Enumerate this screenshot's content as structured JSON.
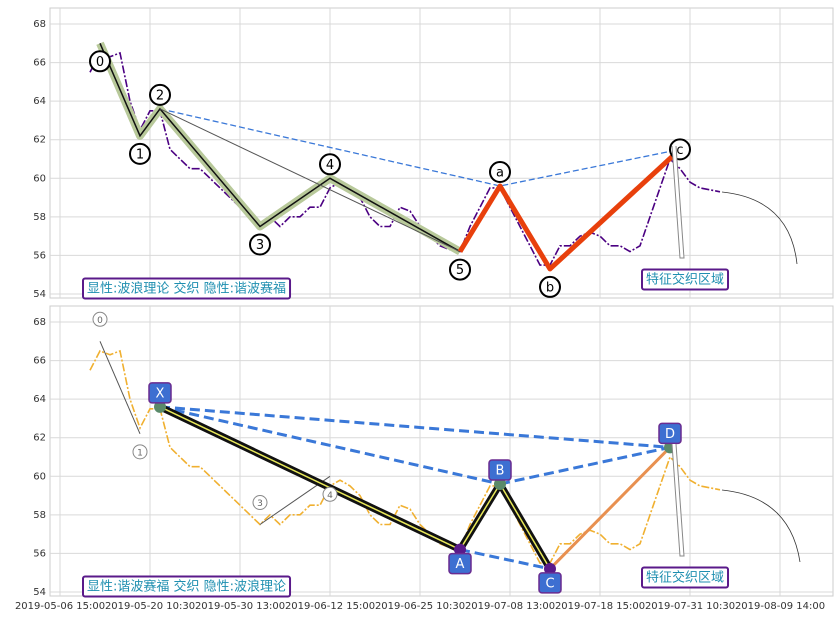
{
  "chart_data": [
    {
      "type": "line",
      "color": "#4b0082",
      "ylim": [
        54,
        68
      ],
      "yticks": [
        54,
        56,
        58,
        60,
        62,
        64,
        66,
        68
      ],
      "grid": true,
      "values": [
        null,
        null,
        null,
        65.5,
        66.5,
        66.3,
        66.5,
        64,
        62.5,
        63.5,
        63.5,
        61.5,
        61,
        60.5,
        60.5,
        60,
        59.5,
        59,
        58.5,
        58,
        57.5,
        58,
        57.5,
        58,
        58,
        58.5,
        58.5,
        59.5,
        59.8,
        59.5,
        59,
        58,
        57.5,
        57.5,
        58.5,
        58.3,
        57.5,
        57,
        56.5,
        56.3,
        56.2,
        57.5,
        58.5,
        59.5,
        59.5,
        58.5,
        57.5,
        56.5,
        55.5,
        55.5,
        56.5,
        56.5,
        57,
        57.2,
        57,
        56.5,
        56.5,
        56.2,
        56.5,
        58,
        59.5,
        61,
        60.5,
        59.8,
        59.5,
        59.4,
        59.3,
        null,
        null,
        null,
        null,
        null,
        null
      ],
      "waves": [
        {
          "label": "0",
          "index": 4,
          "value": 67
        },
        {
          "label": "1",
          "index": 8,
          "value": 62.2
        },
        {
          "label": "2",
          "index": 10,
          "value": 63.6
        },
        {
          "label": "3",
          "index": 20,
          "value": 57.5
        },
        {
          "label": "4",
          "index": 27,
          "value": 60
        },
        {
          "label": "5",
          "index": 40,
          "value": 56.2
        },
        {
          "label": "a",
          "index": 44,
          "value": 59.6
        },
        {
          "label": "b",
          "index": 49,
          "value": 55.3
        },
        {
          "label": "c",
          "index": 62,
          "value": 61.5
        }
      ],
      "annotation": "显性:波浪理论 交织 隐性:谐波赛福",
      "zone_label": "特征交织区域"
    },
    {
      "type": "line",
      "color": "#f0b030",
      "ylim": [
        54,
        68
      ],
      "yticks": [
        54,
        56,
        58,
        60,
        62,
        64,
        66,
        68
      ],
      "grid": true,
      "categories": [
        "2019-05-06 15:00",
        null,
        null,
        null,
        null,
        null,
        null,
        null,
        null,
        "2019-05-20 10:30",
        null,
        null,
        null,
        null,
        null,
        null,
        null,
        null,
        "2019-05-30 13:00",
        null,
        null,
        null,
        null,
        null,
        null,
        null,
        null,
        "2019-06-12 15:00",
        null,
        null,
        null,
        null,
        null,
        null,
        null,
        null,
        "2019-06-25 10:30",
        null,
        null,
        null,
        null,
        null,
        null,
        null,
        null,
        "2019-07-08 13:00",
        null,
        null,
        null,
        null,
        null,
        null,
        null,
        null,
        "2019-07-18 15:00",
        null,
        null,
        null,
        null,
        null,
        null,
        null,
        null,
        "2019-07-31 10:30",
        null,
        null,
        null,
        null,
        null,
        null,
        null,
        null,
        "2019-08-09 14:00"
      ],
      "values": [
        null,
        null,
        null,
        65.5,
        66.5,
        66.3,
        66.5,
        64,
        62.5,
        63.5,
        63.5,
        61.5,
        61,
        60.5,
        60.5,
        60,
        59.5,
        59,
        58.5,
        58,
        57.5,
        58,
        57.5,
        58,
        58,
        58.5,
        58.5,
        59.5,
        59.8,
        59.5,
        59,
        58,
        57.5,
        57.5,
        58.5,
        58.3,
        57.5,
        57,
        56.5,
        56.3,
        56.2,
        57.5,
        58.5,
        59.5,
        59.5,
        58.5,
        57.5,
        56.5,
        55.5,
        55.5,
        56.5,
        56.5,
        57,
        57.2,
        57,
        56.5,
        56.5,
        56.2,
        56.5,
        58,
        59.5,
        61,
        60.5,
        59.8,
        59.5,
        59.4,
        59.3,
        null,
        null,
        null,
        null,
        null,
        null
      ],
      "waves": [
        {
          "label": "0",
          "index": 4,
          "value": 67
        },
        {
          "label": "1",
          "index": 8,
          "value": 62.2
        },
        {
          "label": "3",
          "index": 20,
          "value": 57.5
        },
        {
          "label": "4",
          "index": 27,
          "value": 60
        }
      ],
      "pattern": [
        {
          "label": "X",
          "index": 10,
          "value": 63.6
        },
        {
          "label": "A",
          "index": 40,
          "value": 56.2
        },
        {
          "label": "B",
          "index": 44,
          "value": 59.6
        },
        {
          "label": "C",
          "index": 49,
          "value": 55.2
        },
        {
          "label": "D",
          "index": 61,
          "value": 61.5
        }
      ],
      "annotation": "显性:谐波赛福 交织 隐性:波浪理论",
      "zone_label": "特征交织区域"
    }
  ]
}
